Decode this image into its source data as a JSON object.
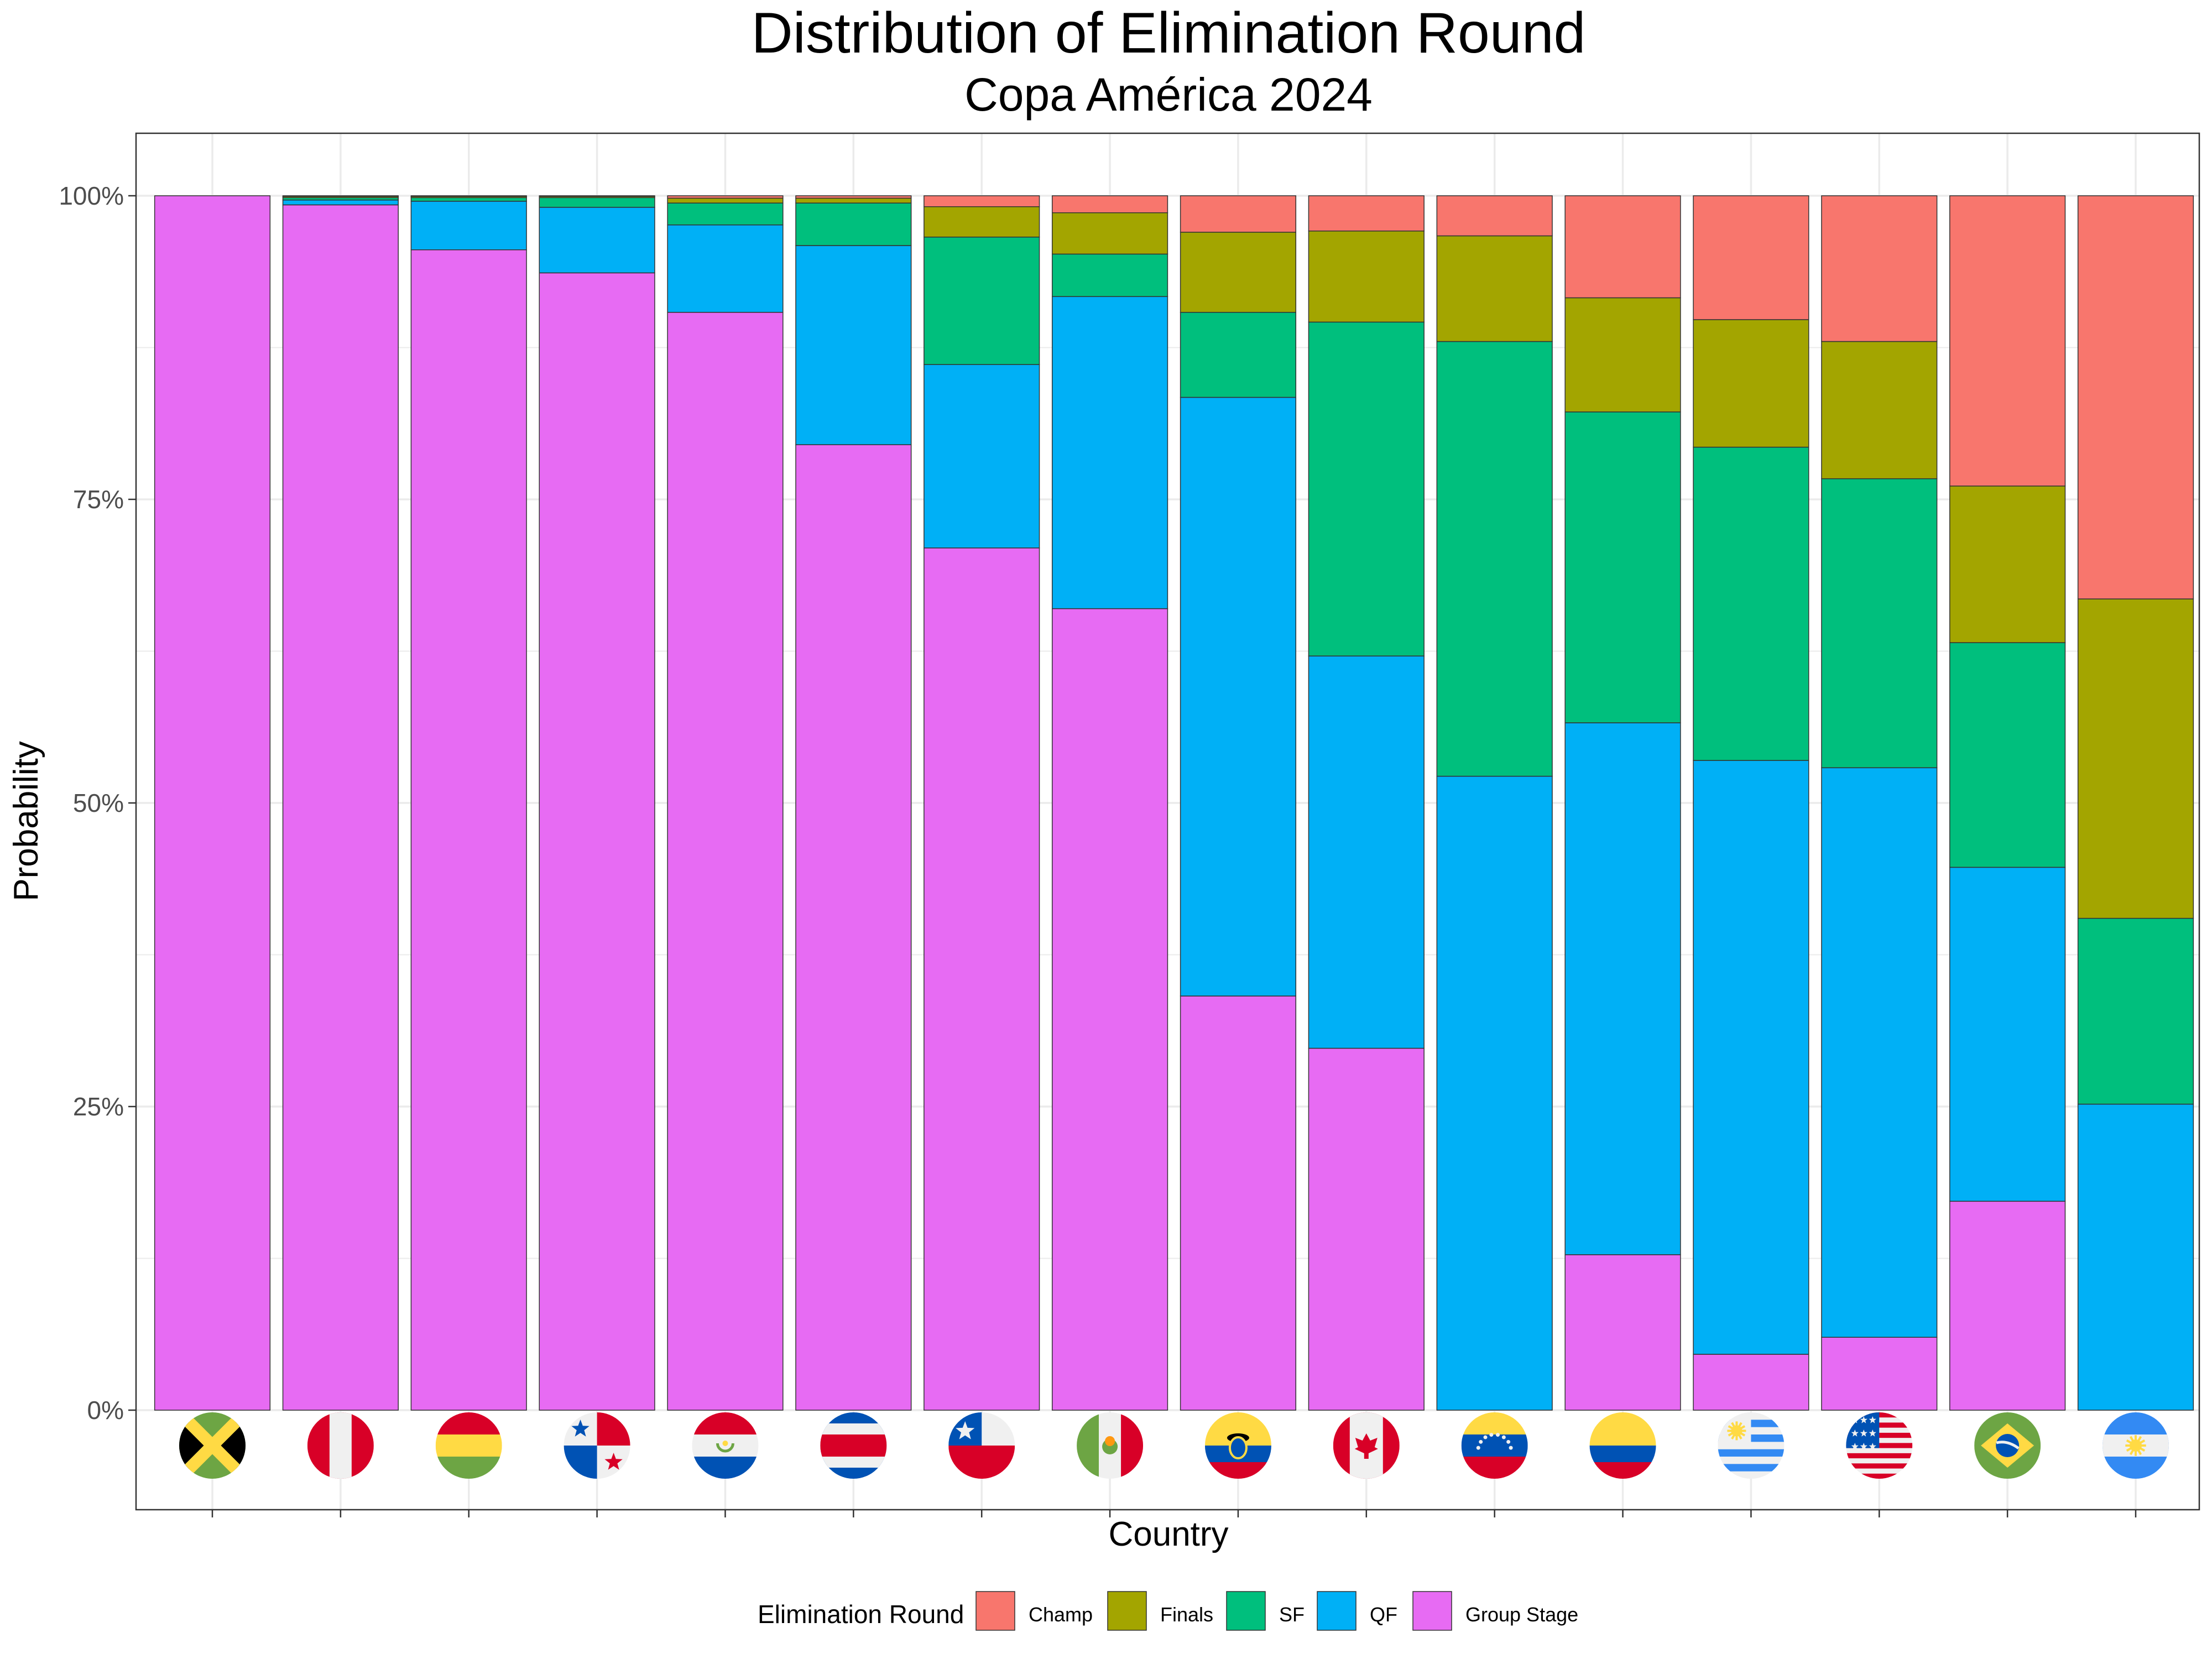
{
  "chart_data": {
    "type": "bar",
    "stacked": true,
    "title": "Distribution of Elimination Round",
    "subtitle": "Copa América 2024",
    "xlabel": "Country",
    "ylabel": "Probability",
    "ylim": [
      0,
      1
    ],
    "y_ticks": [
      0,
      0.25,
      0.5,
      0.75,
      1
    ],
    "y_tick_labels": [
      "0%",
      "25%",
      "50%",
      "75%",
      "100%"
    ],
    "grid": true,
    "legend_title": "Elimination Round",
    "legend_position": "bottom",
    "categories": [
      "Jamaica",
      "Peru",
      "Bolivia",
      "Panama",
      "Paraguay",
      "Costa Rica",
      "Chile",
      "Mexico",
      "Ecuador",
      "Canada",
      "Venezuela",
      "Colombia",
      "Uruguay",
      "United States",
      "Brazil",
      "Argentina"
    ],
    "category_icons": [
      "jamaica-flag-icon",
      "peru-flag-icon",
      "bolivia-flag-icon",
      "panama-flag-icon",
      "paraguay-flag-icon",
      "costa-rica-flag-icon",
      "chile-flag-icon",
      "mexico-flag-icon",
      "ecuador-flag-icon",
      "canada-flag-icon",
      "venezuela-flag-icon",
      "colombia-flag-icon",
      "uruguay-flag-icon",
      "usa-flag-icon",
      "brazil-flag-icon",
      "argentina-flag-icon"
    ],
    "stack_order_bottom_to_top": [
      "Group Stage",
      "QF",
      "SF",
      "Finals",
      "Champ"
    ],
    "series": [
      {
        "name": "Champ",
        "color": "#F8766D",
        "values": [
          0.0,
          0.0005,
          0.0005,
          0.0005,
          0.002,
          0.002,
          0.009,
          0.014,
          0.03,
          0.029,
          0.033,
          0.084,
          0.102,
          0.12,
          0.239,
          0.332
        ]
      },
      {
        "name": "Finals",
        "color": "#A3A500",
        "values": [
          0.0,
          0.001,
          0.001,
          0.001,
          0.004,
          0.004,
          0.025,
          0.034,
          0.066,
          0.075,
          0.087,
          0.094,
          0.105,
          0.113,
          0.129,
          0.263
        ]
      },
      {
        "name": "SF",
        "color": "#00BF7D",
        "values": [
          0.0,
          0.002,
          0.003,
          0.008,
          0.018,
          0.035,
          0.105,
          0.035,
          0.07,
          0.275,
          0.358,
          0.256,
          0.258,
          0.238,
          0.185,
          0.153
        ]
      },
      {
        "name": "QF",
        "color": "#00B0F6",
        "values": [
          0.0,
          0.004,
          0.04,
          0.054,
          0.072,
          0.164,
          0.151,
          0.257,
          0.493,
          0.323,
          0.522,
          0.438,
          0.489,
          0.469,
          0.275,
          0.252
        ]
      },
      {
        "name": "Group Stage",
        "color": "#E76BF3",
        "values": [
          1.0,
          0.9925,
          0.9555,
          0.9365,
          0.904,
          0.795,
          0.71,
          0.66,
          0.341,
          0.298,
          0.0,
          0.128,
          0.046,
          0.06,
          0.172,
          0.0
        ]
      }
    ]
  }
}
